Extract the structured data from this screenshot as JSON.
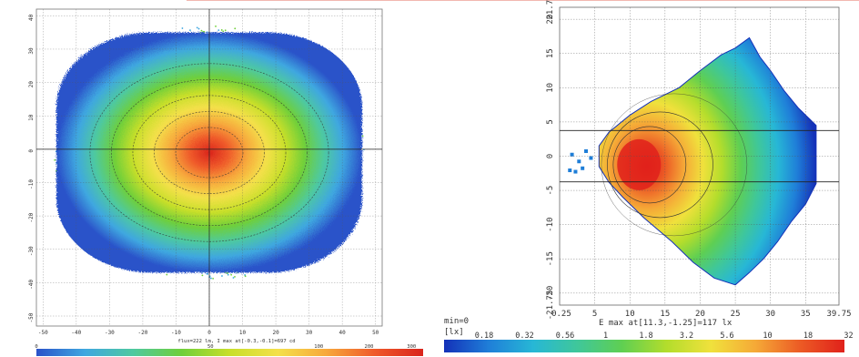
{
  "topline_color": "#f2b8b0",
  "chart_data": [
    {
      "type": "heatmap",
      "title": "",
      "xlabel": "",
      "ylabel": "",
      "xlim": [
        -52,
        52
      ],
      "ylim": [
        -53,
        42
      ],
      "x_ticks": [
        "-50",
        "-40",
        "-30",
        "-20",
        "-10",
        "0",
        "10",
        "20",
        "30",
        "40",
        "50"
      ],
      "y_ticks": [
        "40",
        "30",
        "20",
        "10",
        "0",
        "-10",
        "-20",
        "-30",
        "-40",
        "-50"
      ],
      "grid": true,
      "peak": {
        "x": -0.3,
        "y": -0.1
      },
      "caption": "flux=222 lm, I max at[-0.3,-0.1]=697 cd",
      "colorbar_ticks": [
        "0",
        "50",
        "100",
        "200",
        "300"
      ],
      "colormap": [
        "#2a52c9",
        "#3fa7e0",
        "#4ec9a0",
        "#6fcf3a",
        "#c8df2a",
        "#f4e04a",
        "#f7a83c",
        "#ef5a2a",
        "#d9241c"
      ]
    },
    {
      "type": "heatmap",
      "title": "",
      "xlabel": "",
      "ylabel": "",
      "xlim": [
        0,
        39.75
      ],
      "ylim": [
        -21.75,
        21.75
      ],
      "x_ticks": [
        "0.25",
        "5",
        "10",
        "15",
        "20",
        "25",
        "30",
        "35",
        "39.75"
      ],
      "y_ticks": [
        "21.75",
        "20",
        "15",
        "10",
        "5",
        "0",
        "-5",
        "-10",
        "-15",
        "-20",
        "-21.75"
      ],
      "grid": true,
      "peak": {
        "x": 11.3,
        "y": -1.25
      },
      "caption": "E max at[11.3,-1.25]=117 lx",
      "min_label": "min=0",
      "unit_label": "[lx]",
      "horizontal_lines": [
        3.75,
        -3.75
      ],
      "colorbar_ticks": [
        "0.18",
        "0.32",
        "0.56",
        "1",
        "1.8",
        "3.2",
        "5.6",
        "10",
        "18",
        "32"
      ],
      "colormap": [
        "#1431b8",
        "#1f7ed8",
        "#27b7d6",
        "#3fc79a",
        "#5fcf52",
        "#b3dd2c",
        "#f0e13c",
        "#f5a937",
        "#ec5b25",
        "#e0211b"
      ]
    }
  ]
}
